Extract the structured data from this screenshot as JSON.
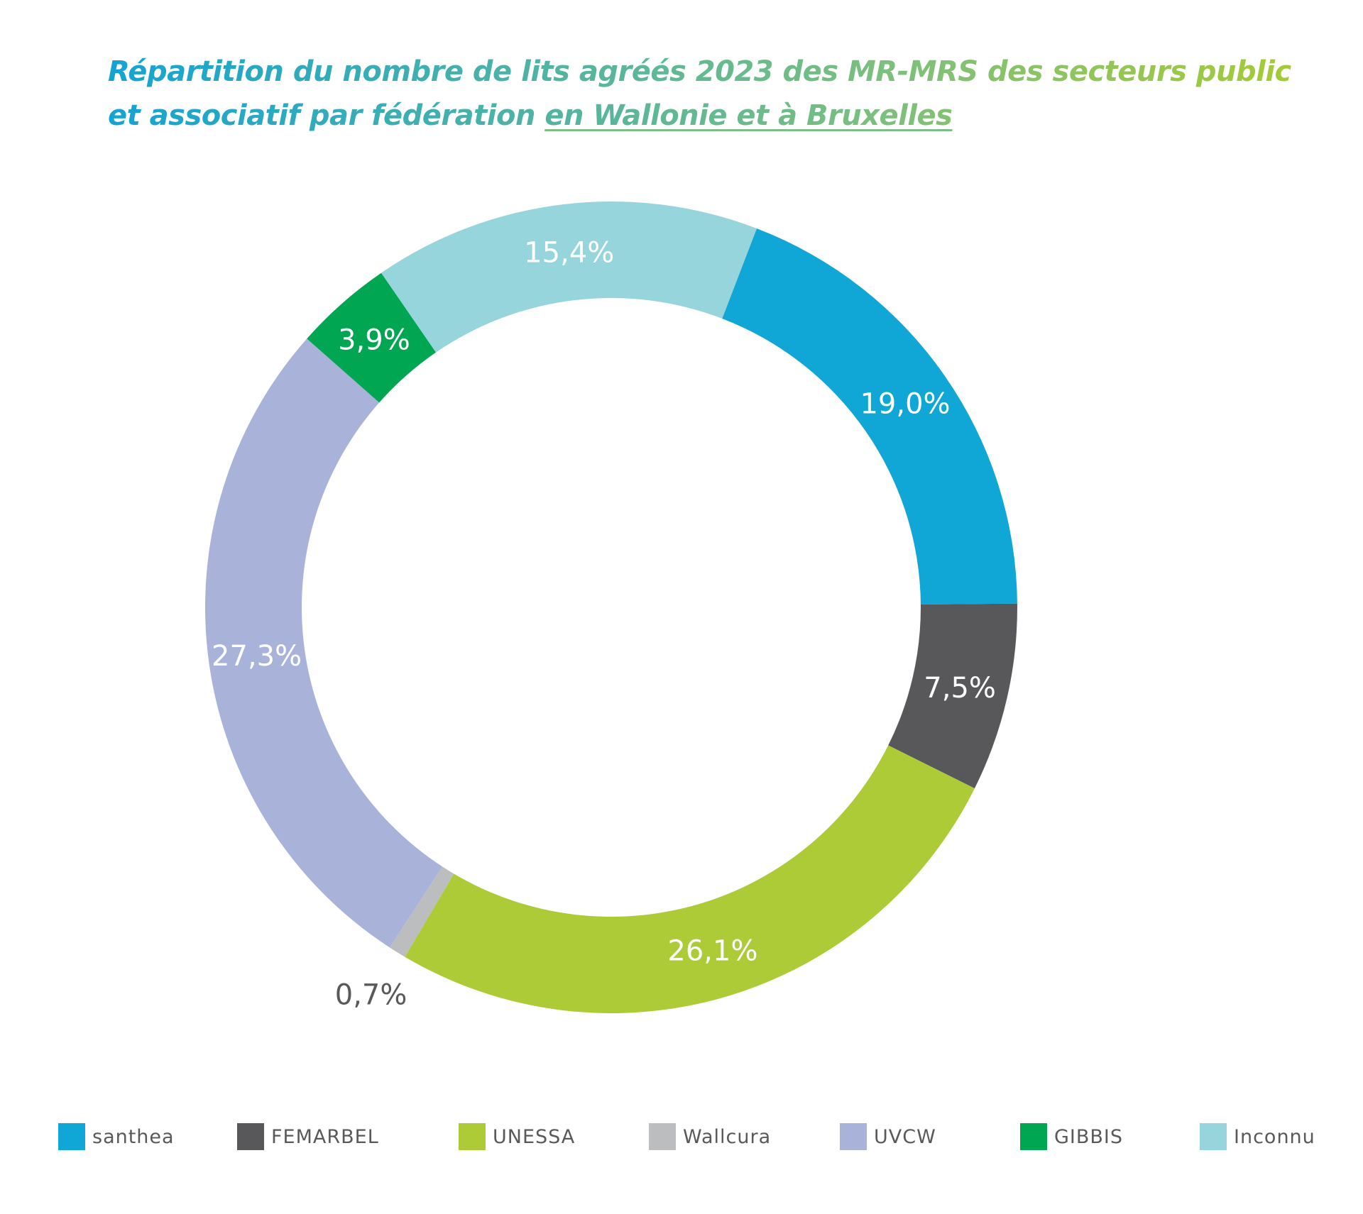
{
  "title": {
    "line1": "Répartition du nombre de lits agréés 2023 des MR-MRS des secteurs public",
    "line2_plain": "et associatif par fédération ",
    "line2_underlined": "en Wallonie et à Bruxelles"
  },
  "chart_data": {
    "type": "pie",
    "variant": "donut",
    "title": "Répartition du nombre de lits agréés 2023 des MR-MRS des secteurs public et associatif par fédération en Wallonie et à Bruxelles",
    "unit": "%",
    "categories": [
      "santhea",
      "FEMARBEL",
      "UNESSA",
      "Wallcura",
      "UVCW",
      "GIBBIS",
      "Inconnu"
    ],
    "values": [
      19.0,
      7.5,
      26.1,
      0.7,
      27.3,
      3.9,
      15.4
    ],
    "data_labels": [
      "19,0%",
      "7,5%",
      "26,1%",
      "0,7%",
      "27,3%",
      "3,9%",
      "15,4%"
    ],
    "colors": [
      "#10a6d5",
      "#58585a",
      "#adcb36",
      "#bcbdbf",
      "#a9b2d8",
      "#00a651",
      "#96d5dc"
    ],
    "legend_position": "bottom",
    "direction": "clockwise",
    "start_angle_deg": 21
  },
  "legend": [
    {
      "label": "santhea",
      "color": "#10a6d5"
    },
    {
      "label": "FEMARBEL",
      "color": "#58585a"
    },
    {
      "label": "UNESSA",
      "color": "#adcb36"
    },
    {
      "label": "Wallcura",
      "color": "#bcbdbf"
    },
    {
      "label": "UVCW",
      "color": "#a9b2d8"
    },
    {
      "label": "GIBBIS",
      "color": "#00a651"
    },
    {
      "label": "Inconnu",
      "color": "#96d5dc"
    }
  ]
}
